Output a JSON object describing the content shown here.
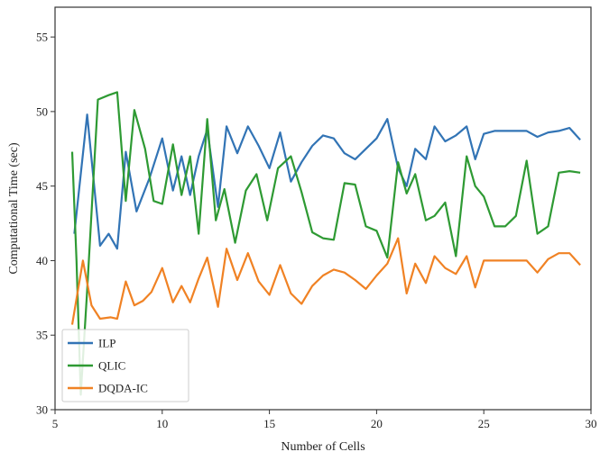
{
  "chart_data": {
    "type": "line",
    "xlabel": "Number of Cells",
    "ylabel": "Computational Time (sec)",
    "xlim": [
      5,
      30
    ],
    "ylim": [
      30,
      57
    ],
    "xticks": [
      5,
      10,
      15,
      20,
      25,
      30
    ],
    "yticks": [
      30,
      35,
      40,
      45,
      50,
      55
    ],
    "grid": false,
    "legend_position": "bottom-left",
    "series": [
      {
        "name": "ILP",
        "color": "#3274b5",
        "x": [
          5.9,
          6.5,
          7.1,
          7.5,
          7.9,
          8.3,
          8.8,
          9.4,
          10,
          10.5,
          10.9,
          11.3,
          11.7,
          12.1,
          12.6,
          13.0,
          13.5,
          14.0,
          14.5,
          15.0,
          15.5,
          16.0,
          16.5,
          17.0,
          17.5,
          18.0,
          18.5,
          19.0,
          19.5,
          20.0,
          20.5,
          21.0,
          21.4,
          21.8,
          22.3,
          22.7,
          23.2,
          23.7,
          24.2,
          24.6,
          25.0,
          25.5,
          26.0,
          26.5,
          27.0,
          27.5,
          28.0,
          28.5,
          29.0,
          29.5
        ],
        "values": [
          41.8,
          49.8,
          41.0,
          41.8,
          40.8,
          47.3,
          43.3,
          45.5,
          48.2,
          44.7,
          47.0,
          44.4,
          47.0,
          48.8,
          43.6,
          49.0,
          47.2,
          49.0,
          47.7,
          46.2,
          48.6,
          45.3,
          46.6,
          47.7,
          48.4,
          48.2,
          47.2,
          46.8,
          47.5,
          48.2,
          49.5,
          46.2,
          45.0,
          47.5,
          46.8,
          49.0,
          48.0,
          48.4,
          49.0,
          46.8,
          48.5,
          48.7,
          48.7,
          48.7,
          48.7,
          48.3,
          48.6,
          48.7,
          48.9,
          48.1
        ]
      },
      {
        "name": "QLIC",
        "color": "#2e9a33",
        "x": [
          5.8,
          6.0,
          6.2,
          6.5,
          7.0,
          7.5,
          7.9,
          8.3,
          8.7,
          9.2,
          9.6,
          10.0,
          10.5,
          10.9,
          11.3,
          11.7,
          12.1,
          12.5,
          12.9,
          13.4,
          13.9,
          14.4,
          14.9,
          15.4,
          16.0,
          16.5,
          17.0,
          17.5,
          18.0,
          18.5,
          19.0,
          19.5,
          20.0,
          20.5,
          21.0,
          21.4,
          21.8,
          22.3,
          22.7,
          23.2,
          23.7,
          24.2,
          24.6,
          25.0,
          25.5,
          26.0,
          26.5,
          27.0,
          27.5,
          28.0,
          28.5,
          29.0,
          29.5
        ],
        "values": [
          47.3,
          40.0,
          31.0,
          38.0,
          50.8,
          51.1,
          51.3,
          44.0,
          50.1,
          47.5,
          44.0,
          43.8,
          47.8,
          44.4,
          47.0,
          41.8,
          49.5,
          42.7,
          44.8,
          41.2,
          44.7,
          45.8,
          42.7,
          46.2,
          47.0,
          44.6,
          41.9,
          41.5,
          41.4,
          45.2,
          45.1,
          42.3,
          42.0,
          40.2,
          46.6,
          44.5,
          45.8,
          42.7,
          43.0,
          43.9,
          40.3,
          47.0,
          45.0,
          44.3,
          42.3,
          42.3,
          43.0,
          46.7,
          41.8,
          42.3,
          45.9,
          46.0,
          45.9
        ]
      },
      {
        "name": "DQDA-IC",
        "color": "#f08224",
        "x": [
          5.8,
          6.3,
          6.7,
          7.1,
          7.6,
          7.9,
          8.3,
          8.7,
          9.1,
          9.5,
          10.0,
          10.5,
          10.9,
          11.3,
          11.7,
          12.1,
          12.6,
          13.0,
          13.5,
          14.0,
          14.5,
          15.0,
          15.5,
          16.0,
          16.5,
          17.0,
          17.5,
          18.0,
          18.5,
          19.0,
          19.5,
          20.0,
          20.5,
          21.0,
          21.4,
          21.8,
          22.3,
          22.7,
          23.2,
          23.7,
          24.2,
          24.6,
          25.0,
          25.5,
          26.0,
          26.5,
          27.0,
          27.5,
          28.0,
          28.5,
          29.0,
          29.5
        ],
        "values": [
          35.7,
          40.0,
          37.0,
          36.1,
          36.2,
          36.1,
          38.6,
          37.0,
          37.3,
          37.9,
          39.5,
          37.2,
          38.3,
          37.2,
          38.8,
          40.2,
          36.9,
          40.8,
          38.7,
          40.5,
          38.6,
          37.7,
          39.7,
          37.8,
          37.1,
          38.3,
          39.0,
          39.4,
          39.2,
          38.7,
          38.1,
          39.0,
          39.8,
          41.5,
          37.8,
          39.8,
          38.5,
          40.3,
          39.5,
          39.1,
          40.3,
          38.2,
          40.0,
          40.0,
          40.0,
          40.0,
          40.0,
          39.2,
          40.1,
          40.5,
          40.5,
          39.7
        ]
      }
    ]
  }
}
